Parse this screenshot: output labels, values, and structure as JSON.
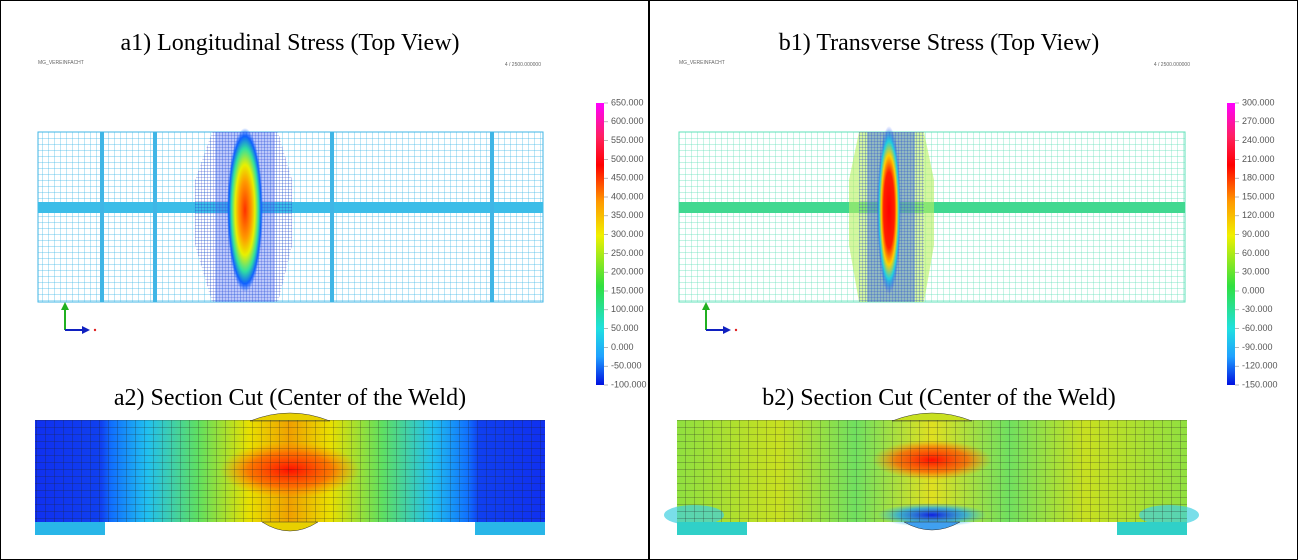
{
  "panels": [
    {
      "top_title": "a1) Longitudinal Stress (Top View)",
      "section_title": "a2) Section Cut (Center of the Weld)",
      "model_name": "MG_VEREINFACHT",
      "step_label": "4 / 2500.000000",
      "colorbar_ticks": [
        {
          "value": 650,
          "label": "650.000"
        },
        {
          "value": 600,
          "label": "600.000"
        },
        {
          "value": 550,
          "label": "550.000"
        },
        {
          "value": 500,
          "label": "500.000"
        },
        {
          "value": 450,
          "label": "450.000"
        },
        {
          "value": 400,
          "label": "400.000"
        },
        {
          "value": 350,
          "label": "350.000"
        },
        {
          "value": 300,
          "label": "300.000"
        },
        {
          "value": 250,
          "label": "250.000"
        },
        {
          "value": 200,
          "label": "200.000"
        },
        {
          "value": 150,
          "label": "150.000"
        },
        {
          "value": 100,
          "label": "100.000"
        },
        {
          "value": 50,
          "label": "50.000"
        },
        {
          "value": 0,
          "label": "0.000"
        },
        {
          "value": -50,
          "label": "-50.000"
        },
        {
          "value": -100,
          "label": "-100.000"
        }
      ]
    },
    {
      "top_title": "b1) Transverse Stress (Top View)",
      "section_title": "b2) Section Cut (Center of the Weld)",
      "model_name": "MG_VEREINFACHT",
      "step_label": "4 / 2500.000000",
      "colorbar_ticks": [
        {
          "value": 300,
          "label": "300.000"
        },
        {
          "value": 270,
          "label": "270.000"
        },
        {
          "value": 240,
          "label": "240.000"
        },
        {
          "value": 210,
          "label": "210.000"
        },
        {
          "value": 180,
          "label": "180.000"
        },
        {
          "value": 150,
          "label": "150.000"
        },
        {
          "value": 120,
          "label": "120.000"
        },
        {
          "value": 90,
          "label": "90.000"
        },
        {
          "value": 60,
          "label": "60.000"
        },
        {
          "value": 30,
          "label": "30.000"
        },
        {
          "value": 0,
          "label": "0.000"
        },
        {
          "value": -30,
          "label": "-30.000"
        },
        {
          "value": -60,
          "label": "-60.000"
        },
        {
          "value": -90,
          "label": "-90.000"
        },
        {
          "value": -120,
          "label": "-120.000"
        },
        {
          "value": -150,
          "label": "-150.000"
        }
      ]
    }
  ]
}
